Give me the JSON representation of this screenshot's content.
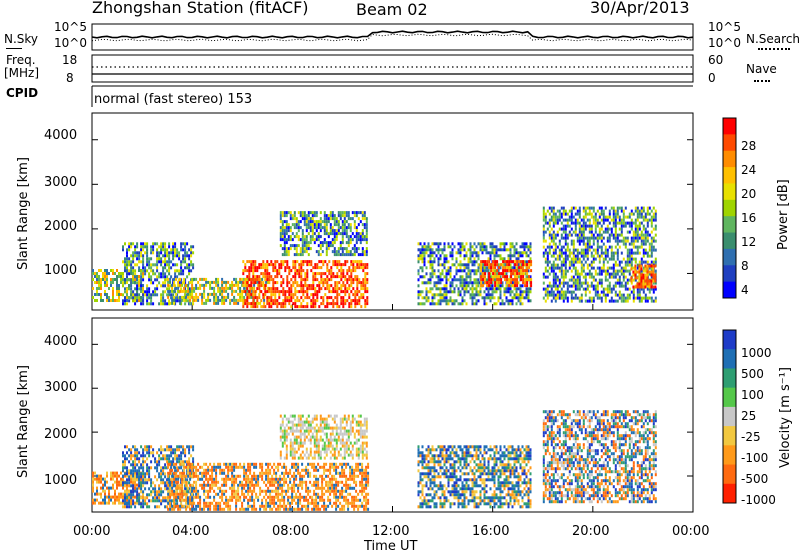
{
  "header": {
    "station": "Zhongshan Station (fitACF)",
    "beam": "Beam 02",
    "date": "30/Apr/2013"
  },
  "noise_panel": {
    "left_label": "N.Sky",
    "right_label": "N.Search",
    "y_ticks": [
      "10^5",
      "10^0"
    ]
  },
  "freq_panel": {
    "left_label_1": "Freq.",
    "left_label_2": "[MHz]",
    "left_ticks": [
      "18",
      "8"
    ],
    "right_label": "Nave",
    "right_ticks": [
      "60",
      "0"
    ]
  },
  "cpid_panel": {
    "label": "CPID",
    "text": "normal (fast stereo) 153"
  },
  "power_panel": {
    "ylabel": "Slant Range [km]",
    "yticks": [
      "4000",
      "3000",
      "2000",
      "1000"
    ],
    "colorbar_label": "Power [dB]",
    "colorbar_ticks": [
      "28",
      "24",
      "20",
      "16",
      "12",
      "8",
      "4"
    ],
    "colorbar_colors": [
      "#ff0000",
      "#ff4a00",
      "#ff8c00",
      "#ffc000",
      "#e8e000",
      "#9fd400",
      "#5fb55f",
      "#3a8e6e",
      "#2f6fb0",
      "#1f3fc0",
      "#0000ff"
    ]
  },
  "velocity_panel": {
    "ylabel": "Slant Range [km]",
    "yticks": [
      "4000",
      "3000",
      "2000",
      "1000"
    ],
    "colorbar_label": "Velocity [m s⁻¹]",
    "colorbar_ticks": [
      "1000",
      "500",
      "100",
      "25",
      "-25",
      "-100",
      "-500",
      "-1000"
    ],
    "colorbar_colors": [
      "#1e3cc8",
      "#1f6fb4",
      "#2e9e72",
      "#55c84a",
      "#c8c8c8",
      "#f2c840",
      "#ff9a1a",
      "#ff6a10",
      "#ff2000"
    ]
  },
  "x_axis": {
    "ticks": [
      "00:00",
      "04:00",
      "08:00",
      "12:00",
      "16:00",
      "20:00",
      "00:00"
    ],
    "label": "Time UT"
  },
  "chart_data": {
    "type": "heatmap",
    "x_range_hours": [
      0,
      24
    ],
    "y_range_km": [
      180,
      4600
    ],
    "power_patches": [
      {
        "t0": 0.0,
        "t1": 2.0,
        "r0": 400,
        "r1": 1100,
        "level": "medium"
      },
      {
        "t0": 1.2,
        "t1": 4.0,
        "r0": 300,
        "r1": 1700,
        "level": "low"
      },
      {
        "t0": 3.0,
        "t1": 7.0,
        "r0": 350,
        "r1": 900,
        "level": "medium"
      },
      {
        "t0": 6.0,
        "t1": 11.0,
        "r0": 250,
        "r1": 1300,
        "level": "high"
      },
      {
        "t0": 7.5,
        "t1": 11.0,
        "r0": 1400,
        "r1": 2400,
        "level": "low"
      },
      {
        "t0": 13.0,
        "t1": 17.5,
        "r0": 300,
        "r1": 1700,
        "level": "low"
      },
      {
        "t0": 15.5,
        "t1": 17.5,
        "r0": 700,
        "r1": 1300,
        "level": "high"
      },
      {
        "t0": 18.0,
        "t1": 22.5,
        "r0": 400,
        "r1": 2500,
        "level": "low"
      },
      {
        "t0": 21.5,
        "t1": 22.5,
        "r0": 700,
        "r1": 1200,
        "level": "high"
      }
    ],
    "velocity_patches": [
      {
        "t0": 0.0,
        "t1": 2.0,
        "r0": 400,
        "r1": 1100,
        "level": "negative"
      },
      {
        "t0": 1.2,
        "t1": 4.0,
        "r0": 300,
        "r1": 1700,
        "level": "positive"
      },
      {
        "t0": 3.0,
        "t1": 11.0,
        "r0": 250,
        "r1": 1300,
        "level": "negative"
      },
      {
        "t0": 7.5,
        "t1": 11.0,
        "r0": 1400,
        "r1": 2400,
        "level": "near_zero"
      },
      {
        "t0": 13.0,
        "t1": 17.5,
        "r0": 300,
        "r1": 1700,
        "level": "positive"
      },
      {
        "t0": 18.0,
        "t1": 22.5,
        "r0": 400,
        "r1": 2500,
        "level": "mixed"
      }
    ]
  }
}
